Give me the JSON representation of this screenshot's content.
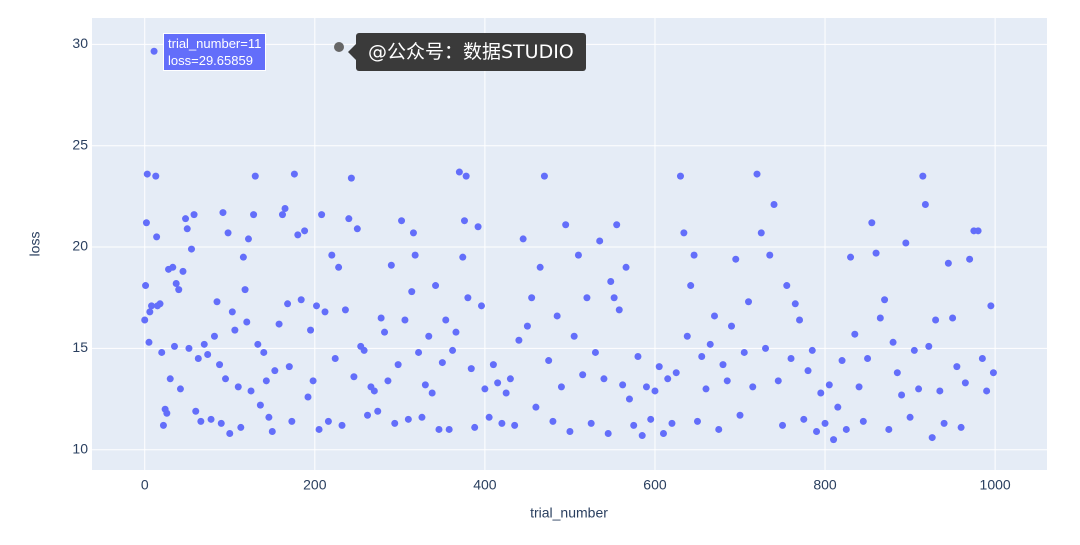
{
  "chart_data": {
    "type": "scatter",
    "x_label": "trial_number",
    "y_label": "loss",
    "hover": [
      "trial_number=11",
      "loss=29.65859"
    ],
    "xlim": [
      -62,
      1061
    ],
    "ylim": [
      9.0,
      31.3
    ],
    "xticks": [
      0,
      200,
      400,
      600,
      800,
      1000
    ],
    "yticks": [
      10,
      15,
      20,
      25,
      30
    ],
    "grid": true,
    "series": [
      {
        "color": "#636efa",
        "x": [
          0,
          1,
          2,
          3,
          5,
          6,
          8,
          11,
          13,
          14,
          15,
          18,
          20,
          22,
          24,
          26,
          28,
          30,
          33,
          35,
          37,
          40,
          42,
          45,
          48,
          50,
          52,
          55,
          58,
          60,
          63,
          66,
          70,
          74,
          78,
          82,
          85,
          88,
          90,
          92,
          95,
          98,
          100,
          103,
          106,
          110,
          113,
          116,
          118,
          120,
          122,
          125,
          128,
          130,
          133,
          136,
          140,
          143,
          146,
          150,
          153,
          158,
          162,
          165,
          168,
          170,
          173,
          176,
          180,
          184,
          188,
          192,
          195,
          198,
          202,
          205,
          208,
          212,
          216,
          220,
          224,
          228,
          232,
          236,
          240,
          243,
          246,
          250,
          254,
          258,
          262,
          266,
          270,
          274,
          278,
          282,
          286,
          290,
          294,
          298,
          302,
          306,
          310,
          314,
          316,
          318,
          322,
          326,
          330,
          334,
          338,
          342,
          346,
          350,
          354,
          358,
          362,
          366,
          370,
          374,
          376,
          378,
          380,
          384,
          388,
          392,
          396,
          400,
          405,
          410,
          415,
          420,
          425,
          430,
          435,
          440,
          445,
          450,
          455,
          460,
          465,
          470,
          475,
          480,
          485,
          490,
          495,
          500,
          505,
          510,
          515,
          520,
          525,
          530,
          535,
          540,
          545,
          548,
          552,
          555,
          558,
          562,
          566,
          570,
          575,
          580,
          585,
          590,
          595,
          600,
          605,
          610,
          615,
          620,
          625,
          630,
          634,
          638,
          642,
          646,
          650,
          655,
          660,
          665,
          670,
          675,
          680,
          685,
          690,
          695,
          700,
          705,
          710,
          715,
          720,
          725,
          730,
          735,
          740,
          745,
          750,
          755,
          760,
          765,
          770,
          775,
          780,
          785,
          790,
          795,
          800,
          805,
          810,
          815,
          820,
          825,
          830,
          835,
          840,
          845,
          850,
          855,
          860,
          865,
          870,
          875,
          880,
          885,
          890,
          895,
          900,
          905,
          910,
          915,
          918,
          922,
          926,
          930,
          935,
          940,
          945,
          950,
          955,
          960,
          965,
          970,
          975,
          980,
          985,
          990,
          995,
          998
        ],
        "values": [
          16.4,
          18.1,
          21.2,
          23.6,
          15.3,
          16.8,
          17.1,
          29.65859,
          23.5,
          20.5,
          17.1,
          17.2,
          14.8,
          11.2,
          12.0,
          11.8,
          18.9,
          13.5,
          19.0,
          15.1,
          18.2,
          17.9,
          13.0,
          18.8,
          21.4,
          20.9,
          15.0,
          19.9,
          21.6,
          11.9,
          14.5,
          11.4,
          15.2,
          14.7,
          11.5,
          15.6,
          17.3,
          14.2,
          11.3,
          21.7,
          13.5,
          20.7,
          10.8,
          16.8,
          15.9,
          13.1,
          11.1,
          19.5,
          17.9,
          16.3,
          20.4,
          12.9,
          21.6,
          23.5,
          15.2,
          12.2,
          14.8,
          13.4,
          11.6,
          10.9,
          13.9,
          16.2,
          21.6,
          21.9,
          17.2,
          14.1,
          11.4,
          23.6,
          20.6,
          17.4,
          20.8,
          12.6,
          15.9,
          13.4,
          17.1,
          11.0,
          21.6,
          16.8,
          11.4,
          19.6,
          14.5,
          19.0,
          11.2,
          16.9,
          21.4,
          23.4,
          13.6,
          20.9,
          15.1,
          14.9,
          11.7,
          13.1,
          12.9,
          11.9,
          16.5,
          15.8,
          13.4,
          19.1,
          11.3,
          14.2,
          21.3,
          16.4,
          11.5,
          17.8,
          20.7,
          19.6,
          14.8,
          11.6,
          13.2,
          15.6,
          12.8,
          18.1,
          11.0,
          14.3,
          16.4,
          11.0,
          14.9,
          15.8,
          23.7,
          19.5,
          21.3,
          23.5,
          17.5,
          14.0,
          11.1,
          21.0,
          17.1,
          13.0,
          11.6,
          14.2,
          13.3,
          11.3,
          12.8,
          13.5,
          11.2,
          15.4,
          20.4,
          16.1,
          17.5,
          12.1,
          19.0,
          23.5,
          14.4,
          11.4,
          16.6,
          13.1,
          21.1,
          10.9,
          15.6,
          19.6,
          13.7,
          17.5,
          11.3,
          14.8,
          20.3,
          13.5,
          10.8,
          18.3,
          17.5,
          21.1,
          16.9,
          13.2,
          19.0,
          12.5,
          11.2,
          14.6,
          10.7,
          13.1,
          11.5,
          12.9,
          14.1,
          10.8,
          13.5,
          11.3,
          13.8,
          23.5,
          20.7,
          15.6,
          18.1,
          19.6,
          11.4,
          14.6,
          13.0,
          15.2,
          16.6,
          11.0,
          14.2,
          13.4,
          16.1,
          19.4,
          11.7,
          14.8,
          17.3,
          13.1,
          23.6,
          20.7,
          15.0,
          19.6,
          22.1,
          13.4,
          11.2,
          18.1,
          14.5,
          17.2,
          16.4,
          11.5,
          13.9,
          14.9,
          10.9,
          12.8,
          11.3,
          13.2,
          10.5,
          12.1,
          14.4,
          11.0,
          19.5,
          15.7,
          13.1,
          11.4,
          14.5,
          21.2,
          19.7,
          16.5,
          17.4,
          11.0,
          15.3,
          13.8,
          12.7,
          20.2,
          11.6,
          14.9,
          13.0,
          23.5,
          22.1,
          15.1,
          10.6,
          16.4,
          12.9,
          11.3,
          19.2,
          16.5,
          14.1,
          11.1,
          13.3,
          19.4,
          20.8,
          20.8,
          14.5,
          12.9,
          17.1,
          13.8
        ]
      }
    ]
  },
  "watermark": "@公众号：数据STUDIO"
}
